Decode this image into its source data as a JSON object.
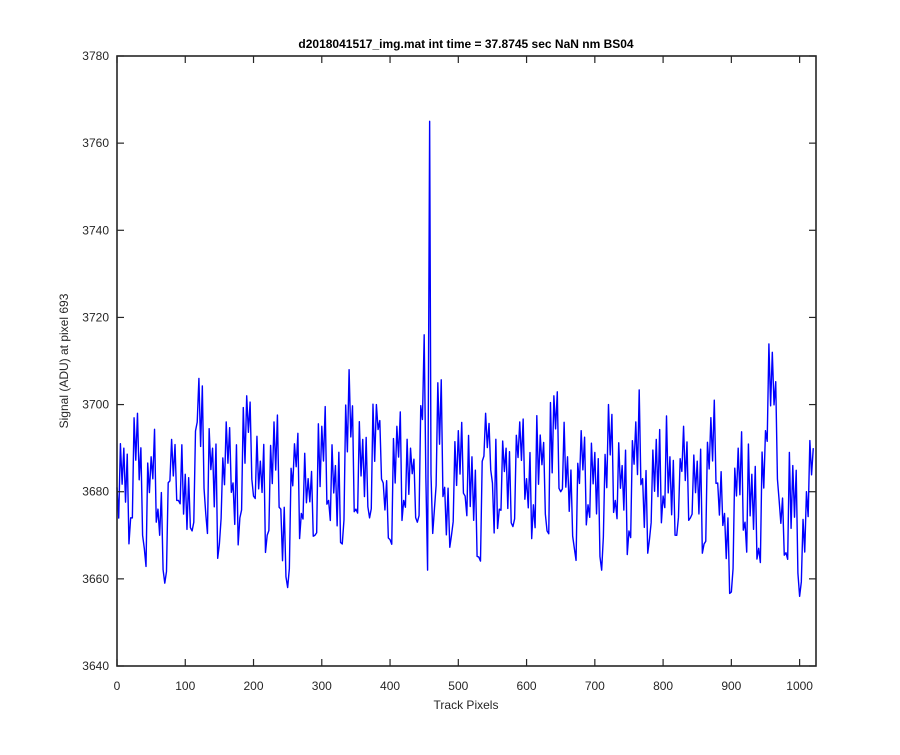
{
  "chart_data": {
    "type": "line",
    "title": "d2018041517_img.mat int time = 37.8745 sec  NaN nm BS04",
    "xlabel": "Track Pixels",
    "ylabel": "Signal (ADU) at pixel 693",
    "xlim": [
      0,
      1024
    ],
    "ylim": [
      3640,
      3780
    ],
    "xticks": [
      0,
      100,
      200,
      300,
      400,
      500,
      600,
      700,
      800,
      900,
      1000
    ],
    "yticks": [
      3640,
      3660,
      3680,
      3700,
      3720,
      3740,
      3760,
      3780
    ],
    "grid": false,
    "line_color": "#0000ff",
    "series": [
      {
        "x": [
          0,
          10,
          20,
          30,
          40,
          50,
          60,
          70,
          80,
          90,
          100,
          110,
          120,
          130,
          140,
          150,
          160,
          170,
          180,
          190,
          200,
          210,
          220,
          230,
          240,
          250,
          260,
          270,
          280,
          290,
          300,
          310,
          320,
          330,
          340,
          350,
          360,
          370,
          380,
          390,
          400,
          410,
          420,
          430,
          440,
          450,
          455,
          458,
          460,
          465,
          470,
          480,
          490,
          500,
          510,
          520,
          530,
          540,
          550,
          560,
          570,
          580,
          590,
          600,
          610,
          620,
          630,
          640,
          650,
          660,
          670,
          680,
          690,
          700,
          710,
          720,
          730,
          740,
          750,
          760,
          770,
          780,
          790,
          800,
          810,
          820,
          830,
          840,
          850,
          860,
          870,
          880,
          890,
          900,
          910,
          920,
          930,
          940,
          950,
          960,
          970,
          980,
          990,
          1000,
          1010,
          1020
        ],
        "y": [
          3681,
          3690,
          3674,
          3698,
          3667,
          3688,
          3676,
          3659,
          3692,
          3678,
          3684,
          3671,
          3706,
          3675,
          3690,
          3668,
          3696,
          3682,
          3674,
          3702,
          3679,
          3687,
          3670,
          3696,
          3676,
          3658,
          3691,
          3675,
          3683,
          3670,
          3695,
          3678,
          3686,
          3668,
          3708,
          3676,
          3692,
          3674,
          3700,
          3682,
          3669,
          3695,
          3678,
          3690,
          3673,
          3716,
          3662,
          3765,
          3684,
          3676,
          3705,
          3681,
          3670,
          3694,
          3679,
          3688,
          3665,
          3698,
          3682,
          3676,
          3690,
          3672,
          3696,
          3683,
          3677,
          3693,
          3671,
          3702,
          3680,
          3688,
          3667,
          3694,
          3677,
          3689,
          3662,
          3700,
          3678,
          3686,
          3671,
          3696,
          3683,
          3669,
          3692,
          3679,
          3688,
          3670,
          3695,
          3674,
          3687,
          3668,
          3697,
          3682,
          3675,
          3657,
          3690,
          3673,
          3684,
          3667,
          3694,
          3712,
          3678,
          3666,
          3686,
          3656,
          3680,
          3690
        ]
      }
    ]
  }
}
